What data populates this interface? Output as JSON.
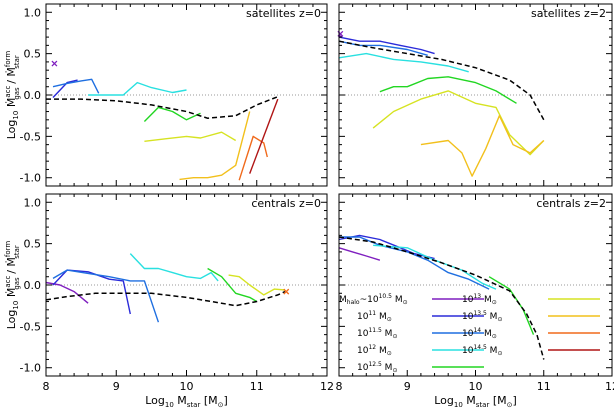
{
  "chart_data": {
    "type": "line",
    "xlim": [
      8,
      12
    ],
    "ylim": [
      -1.1,
      1.1
    ],
    "xticks": [
      8,
      9,
      10,
      11,
      12
    ],
    "yticks": [
      -1.0,
      -0.5,
      0.0,
      0.5,
      1.0
    ],
    "xtick_labels": [
      "8",
      "9",
      "10",
      "11",
      "12"
    ],
    "ytick_labels": [
      "-1.0",
      "-0.5",
      "0.0",
      "0.5",
      "1.0"
    ],
    "xlabel": {
      "prefix": "Log",
      "sub": "10",
      "text": " M",
      "sub2": "star",
      "unit": " [M",
      "unit_sub": "⊙",
      "unit_end": "]"
    },
    "ylabel": {
      "prefix": "Log",
      "sub": "10",
      "rest": "Ṁ",
      "acc_sup": "acc",
      "gas_sub": "gas",
      "slash": " / Ṁ",
      "form_sup": "form",
      "star_sub": "star"
    },
    "legend": {
      "halo_prefix": "M",
      "halo_sub": "halo",
      "tilde": "~10",
      "ten": "10",
      "msun": "M",
      "msun_sub": "⊙",
      "entries": [
        {
          "exp": "10.5",
          "color": "#7f1fbf",
          "prefix": true
        },
        {
          "exp": "11",
          "color": "#2b2bd9"
        },
        {
          "exp": "11.5",
          "color": "#1f6fe0"
        },
        {
          "exp": "12",
          "color": "#29e0e0"
        },
        {
          "exp": "12.5",
          "color": "#22d622"
        },
        {
          "exp": "13",
          "color": "#d6e322"
        },
        {
          "exp": "13.5",
          "color": "#f2c01c"
        },
        {
          "exp": "14",
          "color": "#f06a1c"
        },
        {
          "exp": "14.5",
          "color": "#b01515"
        }
      ]
    },
    "panels": [
      {
        "id": "sat_z0",
        "label": "satellites z=0",
        "median": [
          [
            8.0,
            -0.05
          ],
          [
            8.5,
            -0.05
          ],
          [
            9.0,
            -0.07
          ],
          [
            9.5,
            -0.12
          ],
          [
            10.0,
            -0.2
          ],
          [
            10.3,
            -0.28
          ],
          [
            10.7,
            -0.25
          ],
          [
            11.0,
            -0.12
          ],
          [
            11.3,
            -0.02
          ]
        ],
        "markers": [
          {
            "x": 8.12,
            "y": 0.38,
            "color": "#7f1fbf"
          }
        ],
        "series": [
          {
            "color": "#2b2bd9",
            "points": [
              [
                8.1,
                -0.03
              ],
              [
                8.3,
                0.15
              ],
              [
                8.45,
                0.18
              ]
            ]
          },
          {
            "color": "#1f6fe0",
            "points": [
              [
                8.1,
                0.1
              ],
              [
                8.3,
                0.14
              ],
              [
                8.5,
                0.17
              ],
              [
                8.65,
                0.19
              ],
              [
                8.75,
                0.02
              ]
            ]
          },
          {
            "color": "#29e0e0",
            "points": [
              [
                8.6,
                0.0
              ],
              [
                8.8,
                0.0
              ],
              [
                9.1,
                0.0
              ],
              [
                9.3,
                0.15
              ],
              [
                9.5,
                0.09
              ],
              [
                9.8,
                0.03
              ],
              [
                10.0,
                0.06
              ]
            ]
          },
          {
            "color": "#22d622",
            "points": [
              [
                9.4,
                -0.32
              ],
              [
                9.6,
                -0.15
              ],
              [
                9.8,
                -0.2
              ],
              [
                10.0,
                -0.3
              ],
              [
                10.2,
                -0.22
              ]
            ]
          },
          {
            "color": "#d6e322",
            "points": [
              [
                9.4,
                -0.56
              ],
              [
                9.7,
                -0.53
              ],
              [
                10.0,
                -0.5
              ],
              [
                10.2,
                -0.52
              ],
              [
                10.5,
                -0.45
              ],
              [
                10.7,
                -0.55
              ]
            ]
          },
          {
            "color": "#f2c01c",
            "points": [
              [
                9.9,
                -1.02
              ],
              [
                10.1,
                -1.0
              ],
              [
                10.3,
                -1.0
              ],
              [
                10.5,
                -0.97
              ],
              [
                10.7,
                -0.85
              ],
              [
                10.9,
                -0.2
              ]
            ]
          },
          {
            "color": "#f06a1c",
            "points": [
              [
                10.75,
                -1.03
              ],
              [
                10.95,
                -0.5
              ],
              [
                11.1,
                -0.58
              ],
              [
                11.15,
                -0.75
              ]
            ]
          },
          {
            "color": "#b01515",
            "points": [
              [
                10.9,
                -0.95
              ],
              [
                11.3,
                -0.05
              ]
            ]
          }
        ]
      },
      {
        "id": "sat_z2",
        "label": "satellites z=2",
        "median": [
          [
            8.0,
            0.65
          ],
          [
            8.5,
            0.57
          ],
          [
            9.0,
            0.5
          ],
          [
            9.5,
            0.43
          ],
          [
            10.0,
            0.33
          ],
          [
            10.5,
            0.18
          ],
          [
            10.8,
            0.0
          ],
          [
            11.0,
            -0.3
          ]
        ],
        "markers": [
          {
            "x": 8.02,
            "y": 0.74,
            "color": "#7f1fbf"
          }
        ],
        "series": [
          {
            "color": "#7f1fbf",
            "points": [
              [
                8.0,
                0.72
              ],
              [
                8.05,
                0.7
              ]
            ]
          },
          {
            "color": "#2b2bd9",
            "points": [
              [
                8.0,
                0.7
              ],
              [
                8.3,
                0.65
              ],
              [
                8.6,
                0.65
              ],
              [
                8.9,
                0.6
              ],
              [
                9.2,
                0.55
              ],
              [
                9.4,
                0.5
              ]
            ]
          },
          {
            "color": "#1f6fe0",
            "points": [
              [
                8.0,
                0.65
              ],
              [
                8.3,
                0.6
              ],
              [
                8.6,
                0.6
              ],
              [
                9.0,
                0.55
              ],
              [
                9.3,
                0.48
              ]
            ]
          },
          {
            "color": "#29e0e0",
            "points": [
              [
                8.0,
                0.45
              ],
              [
                8.4,
                0.5
              ],
              [
                8.8,
                0.43
              ],
              [
                9.2,
                0.4
              ],
              [
                9.6,
                0.35
              ],
              [
                9.9,
                0.28
              ]
            ]
          },
          {
            "color": "#22d622",
            "points": [
              [
                8.6,
                0.04
              ],
              [
                8.8,
                0.1
              ],
              [
                9.0,
                0.1
              ],
              [
                9.3,
                0.2
              ],
              [
                9.6,
                0.22
              ],
              [
                10.0,
                0.15
              ],
              [
                10.3,
                0.05
              ],
              [
                10.6,
                -0.1
              ]
            ]
          },
          {
            "color": "#d6e322",
            "points": [
              [
                8.5,
                -0.4
              ],
              [
                8.8,
                -0.2
              ],
              [
                9.2,
                -0.05
              ],
              [
                9.6,
                0.05
              ],
              [
                10.0,
                -0.1
              ],
              [
                10.3,
                -0.15
              ],
              [
                10.5,
                -0.48
              ],
              [
                10.8,
                -0.72
              ],
              [
                11.0,
                -0.55
              ]
            ]
          },
          {
            "color": "#f2c01c",
            "points": [
              [
                9.2,
                -0.6
              ],
              [
                9.6,
                -0.55
              ],
              [
                9.8,
                -0.7
              ],
              [
                9.95,
                -0.98
              ],
              [
                10.15,
                -0.65
              ],
              [
                10.35,
                -0.25
              ],
              [
                10.55,
                -0.6
              ],
              [
                10.8,
                -0.7
              ],
              [
                11.0,
                -0.55
              ]
            ]
          }
        ]
      },
      {
        "id": "cen_z0",
        "label": "centrals z=0",
        "median": [
          [
            8.0,
            -0.18
          ],
          [
            8.3,
            -0.14
          ],
          [
            8.7,
            -0.1
          ],
          [
            9.0,
            -0.1
          ],
          [
            9.5,
            -0.1
          ],
          [
            10.0,
            -0.15
          ],
          [
            10.5,
            -0.22
          ],
          [
            10.7,
            -0.25
          ],
          [
            11.0,
            -0.2
          ],
          [
            11.3,
            -0.12
          ],
          [
            11.4,
            -0.08
          ]
        ],
        "markers": [
          {
            "x": 11.42,
            "y": -0.08,
            "color": "#f06a1c"
          }
        ],
        "series": [
          {
            "color": "#7f1fbf",
            "points": [
              [
                8.0,
                0.03
              ],
              [
                8.2,
                0.0
              ],
              [
                8.4,
                -0.08
              ],
              [
                8.6,
                -0.22
              ]
            ]
          },
          {
            "color": "#2b2bd9",
            "points": [
              [
                8.1,
                0.0
              ],
              [
                8.3,
                0.18
              ],
              [
                8.6,
                0.16
              ],
              [
                8.9,
                0.07
              ],
              [
                9.1,
                0.05
              ],
              [
                9.2,
                -0.35
              ]
            ]
          },
          {
            "color": "#1f6fe0",
            "points": [
              [
                8.1,
                0.08
              ],
              [
                8.3,
                0.18
              ],
              [
                8.6,
                0.14
              ],
              [
                8.9,
                0.1
              ],
              [
                9.2,
                0.05
              ],
              [
                9.4,
                0.05
              ],
              [
                9.6,
                -0.45
              ]
            ]
          },
          {
            "color": "#29e0e0",
            "points": [
              [
                9.2,
                0.38
              ],
              [
                9.4,
                0.2
              ],
              [
                9.6,
                0.2
              ],
              [
                9.8,
                0.15
              ],
              [
                10.0,
                0.1
              ],
              [
                10.2,
                0.08
              ],
              [
                10.35,
                0.15
              ],
              [
                10.45,
                0.05
              ]
            ]
          },
          {
            "color": "#22d622",
            "points": [
              [
                10.3,
                0.2
              ],
              [
                10.5,
                0.1
              ],
              [
                10.7,
                -0.1
              ],
              [
                10.9,
                -0.15
              ],
              [
                11.0,
                -0.2
              ]
            ]
          },
          {
            "color": "#d6e322",
            "points": [
              [
                10.6,
                0.12
              ],
              [
                10.75,
                0.1
              ],
              [
                10.9,
                0.0
              ],
              [
                11.1,
                -0.12
              ],
              [
                11.25,
                -0.05
              ],
              [
                11.4,
                -0.06
              ]
            ]
          }
        ]
      },
      {
        "id": "cen_z2",
        "label": "centrals z=2",
        "median": [
          [
            8.0,
            0.58
          ],
          [
            8.5,
            0.52
          ],
          [
            9.0,
            0.4
          ],
          [
            9.5,
            0.27
          ],
          [
            10.0,
            0.12
          ],
          [
            10.5,
            -0.07
          ],
          [
            10.75,
            -0.35
          ],
          [
            10.9,
            -0.6
          ],
          [
            11.0,
            -0.9
          ]
        ],
        "markers": [],
        "series": [
          {
            "color": "#7f1fbf",
            "points": [
              [
                8.0,
                0.45
              ],
              [
                8.2,
                0.4
              ],
              [
                8.4,
                0.35
              ],
              [
                8.6,
                0.3
              ]
            ]
          },
          {
            "color": "#2b2bd9",
            "points": [
              [
                8.0,
                0.55
              ],
              [
                8.3,
                0.6
              ],
              [
                8.6,
                0.55
              ],
              [
                8.9,
                0.45
              ],
              [
                9.1,
                0.38
              ],
              [
                9.4,
                0.32
              ]
            ]
          },
          {
            "color": "#1f6fe0",
            "points": [
              [
                8.0,
                0.58
              ],
              [
                8.3,
                0.58
              ],
              [
                8.6,
                0.48
              ],
              [
                9.0,
                0.4
              ],
              [
                9.3,
                0.3
              ],
              [
                9.6,
                0.15
              ],
              [
                9.9,
                0.07
              ],
              [
                10.2,
                -0.05
              ]
            ]
          },
          {
            "color": "#29e0e0",
            "points": [
              [
                8.5,
                0.48
              ],
              [
                9.0,
                0.45
              ],
              [
                9.4,
                0.3
              ],
              [
                9.8,
                0.18
              ],
              [
                10.1,
                0.02
              ],
              [
                10.3,
                -0.05
              ]
            ]
          },
          {
            "color": "#22d622",
            "points": [
              [
                10.2,
                0.1
              ],
              [
                10.5,
                -0.05
              ],
              [
                10.7,
                -0.3
              ],
              [
                10.85,
                -0.6
              ]
            ]
          }
        ]
      }
    ]
  }
}
